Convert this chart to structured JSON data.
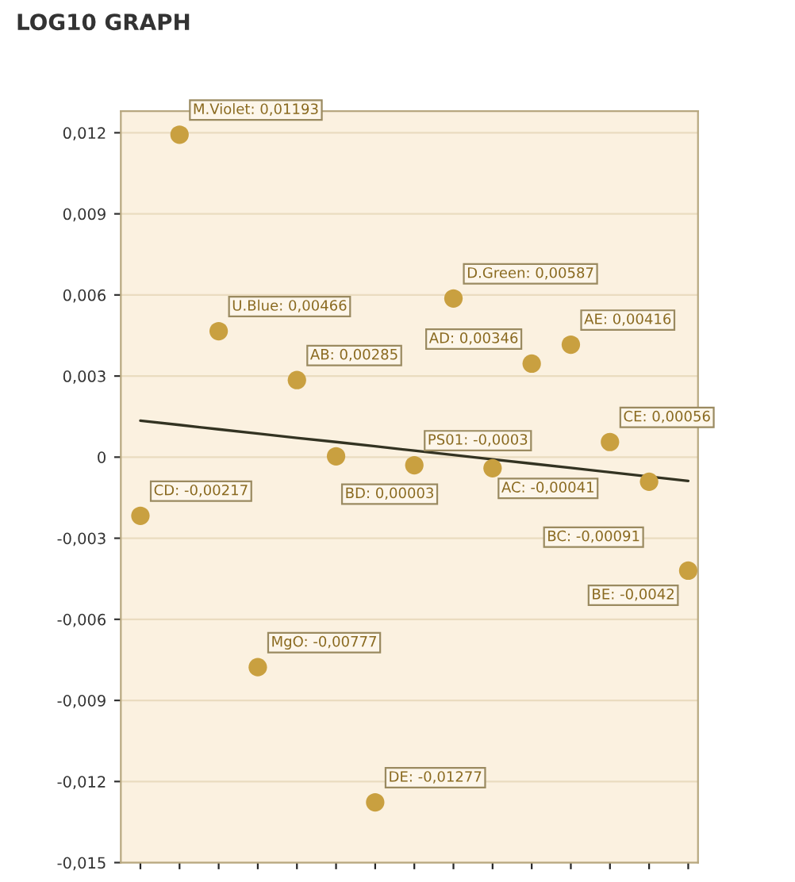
{
  "chart_data": {
    "type": "scatter",
    "title": "LOG10 GRAPH",
    "categories": [
      null,
      null,
      null,
      null,
      null,
      null,
      null,
      null,
      null,
      null,
      null,
      null,
      null,
      null,
      null
    ],
    "series": [
      {
        "color": "#c9a040",
        "marker": "circle",
        "values": [
          -0.00217,
          0.01193,
          0.00466,
          -0.00777,
          0.00285,
          3e-05,
          -0.01277,
          -0.0003,
          0.00587,
          -0.00041,
          0.00346,
          0.00416,
          0.00056,
          -0.00091,
          -0.0042
        ],
        "value_labels": [
          "CD: -0,00217",
          "M.Violet: 0,01193",
          "U.Blue: 0,00466",
          "MgO: -0,00777",
          "AB: 0,00285",
          "BD: 0,00003",
          "DE: -0,01277",
          "PS01: -0,0003",
          "D.Green: 0,00587",
          "AC: -0,00041",
          "AD: 0,00346",
          "AE: 0,00416",
          "CE: 0,00056",
          "BC: -0,00091",
          "BE: -0,0042"
        ]
      },
      {
        "type": "line",
        "color": "#333322",
        "values": [
          0.00135,
          0.00119,
          0.00103,
          0.00087,
          0.00071,
          0.00056,
          0.0004,
          0.00024,
          8e-05,
          -8e-05,
          -0.00024,
          -0.0004,
          -0.00056,
          -0.00072,
          -0.00088
        ]
      }
    ],
    "ylim": [
      -0.015,
      0.0128
    ],
    "yticks": [
      {
        "value": -0.015,
        "label": "-0,015"
      },
      {
        "value": -0.012,
        "label": "-0,012"
      },
      {
        "value": -0.009,
        "label": "-0,009"
      },
      {
        "value": -0.006,
        "label": "-0,006"
      },
      {
        "value": -0.003,
        "label": "-0,003"
      },
      {
        "value": 0,
        "label": "0"
      },
      {
        "value": 0.003,
        "label": "0,003"
      },
      {
        "value": 0.006,
        "label": "0,006"
      },
      {
        "value": 0.009,
        "label": "0,009"
      },
      {
        "value": 0.012,
        "label": "0,012"
      }
    ],
    "grid": "y",
    "legend": false
  }
}
